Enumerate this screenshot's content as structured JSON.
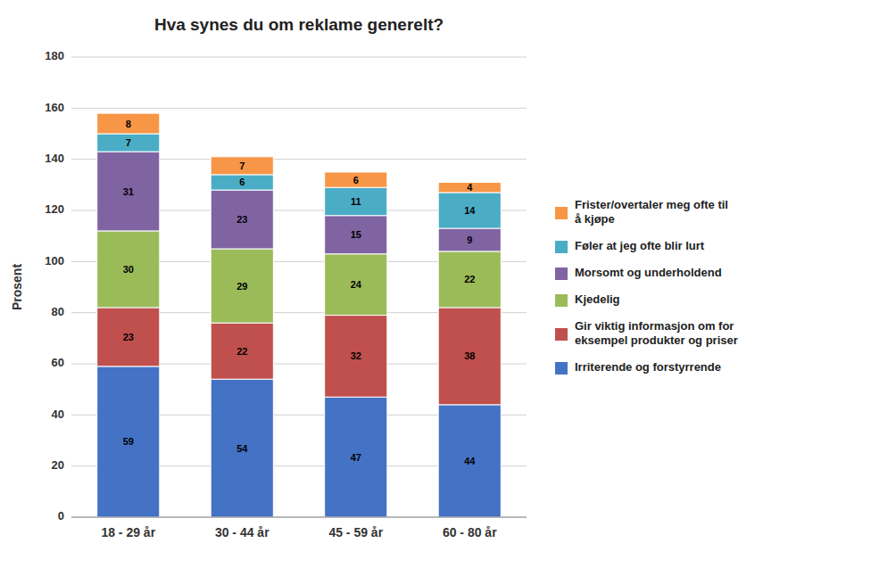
{
  "chart_data": {
    "type": "bar",
    "stacked": true,
    "data_labels": true,
    "grid": true,
    "legend": "right",
    "title": "Hva synes du om reklame generelt?",
    "y_label": "Prosent",
    "categories": [
      "18 - 29 år",
      "30 - 44 år",
      "45 - 59 år",
      "60 - 80 år"
    ],
    "series": [
      {
        "name": "Irriterende og forstyrrende",
        "color": "#4472C4",
        "values": [
          59,
          54,
          47,
          44
        ]
      },
      {
        "name": "Gir viktig informasjon om for\neksempel produkter og priser",
        "color": "#C0504D",
        "values": [
          23,
          22,
          32,
          38
        ]
      },
      {
        "name": "Kjedelig",
        "color": "#9BBB59",
        "values": [
          30,
          29,
          24,
          22
        ]
      },
      {
        "name": "Morsomt og underholdend",
        "color": "#8064A2",
        "values": [
          31,
          23,
          15,
          9
        ]
      },
      {
        "name": "Føler at jeg ofte blir lurt",
        "color": "#4BACC6",
        "values": [
          7,
          6,
          11,
          14
        ]
      },
      {
        "name": "Frister/overtaler meg ofte til\nå kjøpe",
        "color": "#F79646",
        "values": [
          8,
          7,
          6,
          4
        ]
      }
    ],
    "ylim": [
      0,
      180
    ],
    "yticks": [
      0,
      20,
      40,
      60,
      80,
      100,
      120,
      140,
      160,
      180
    ]
  }
}
